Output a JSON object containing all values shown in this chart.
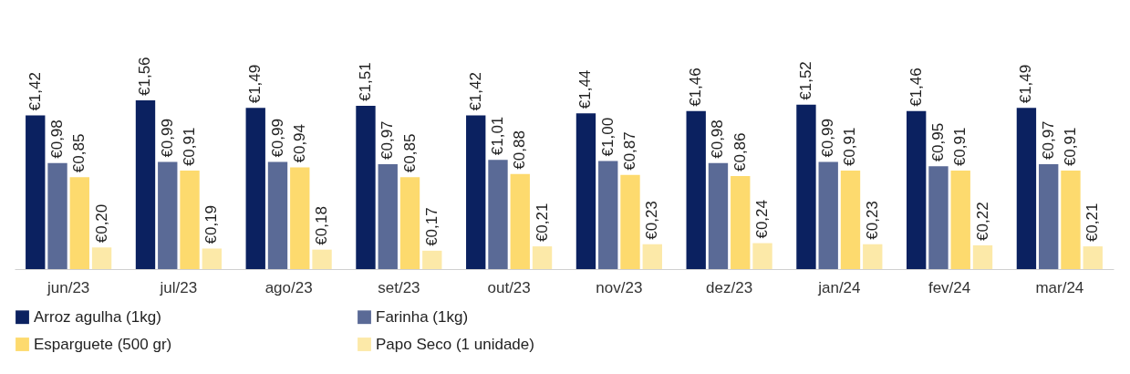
{
  "chart_data": {
    "type": "bar",
    "categories": [
      "jun/23",
      "jul/23",
      "ago/23",
      "set/23",
      "out/23",
      "nov/23",
      "dez/23",
      "jan/24",
      "fev/24",
      "mar/24"
    ],
    "series": [
      {
        "name": "Arroz agulha (1kg)",
        "color": "#0b2160",
        "values": [
          1.42,
          1.56,
          1.49,
          1.51,
          1.42,
          1.44,
          1.46,
          1.52,
          1.46,
          1.49
        ],
        "value_labels": [
          "€1,42",
          "€1,56",
          "€1,49",
          "€1,51",
          "€1,42",
          "€1,44",
          "€1,46",
          "€1,52",
          "€1,46",
          "€1,49"
        ]
      },
      {
        "name": "Farinha (1kg)",
        "color": "#5a6a96",
        "values": [
          0.98,
          0.99,
          0.99,
          0.97,
          1.01,
          1.0,
          0.98,
          0.99,
          0.95,
          0.97
        ],
        "value_labels": [
          "€0,98",
          "€0,99",
          "€0,99",
          "€0,97",
          "€1,01",
          "€1,00",
          "€0,98",
          "€0,99",
          "€0,95",
          "€0,97"
        ]
      },
      {
        "name": "Esparguete (500 gr)",
        "color": "#fdda6e",
        "values": [
          0.85,
          0.91,
          0.94,
          0.85,
          0.88,
          0.87,
          0.86,
          0.91,
          0.91,
          0.91
        ],
        "value_labels": [
          "€0,85",
          "€0,91",
          "€0,94",
          "€0,85",
          "€0,88",
          "€0,87",
          "€0,86",
          "€0,91",
          "€0,91",
          "€0,91"
        ]
      },
      {
        "name": "Papo Seco (1 unidade)",
        "color": "#fce9a8",
        "values": [
          0.2,
          0.19,
          0.18,
          0.17,
          0.21,
          0.23,
          0.24,
          0.23,
          0.22,
          0.21
        ],
        "value_labels": [
          "€0,20",
          "€0,19",
          "€0,18",
          "€0,17",
          "€0,21",
          "€0,23",
          "€0,24",
          "€0,23",
          "€0,22",
          "€0,21"
        ]
      }
    ],
    "legend": "bottom"
  }
}
